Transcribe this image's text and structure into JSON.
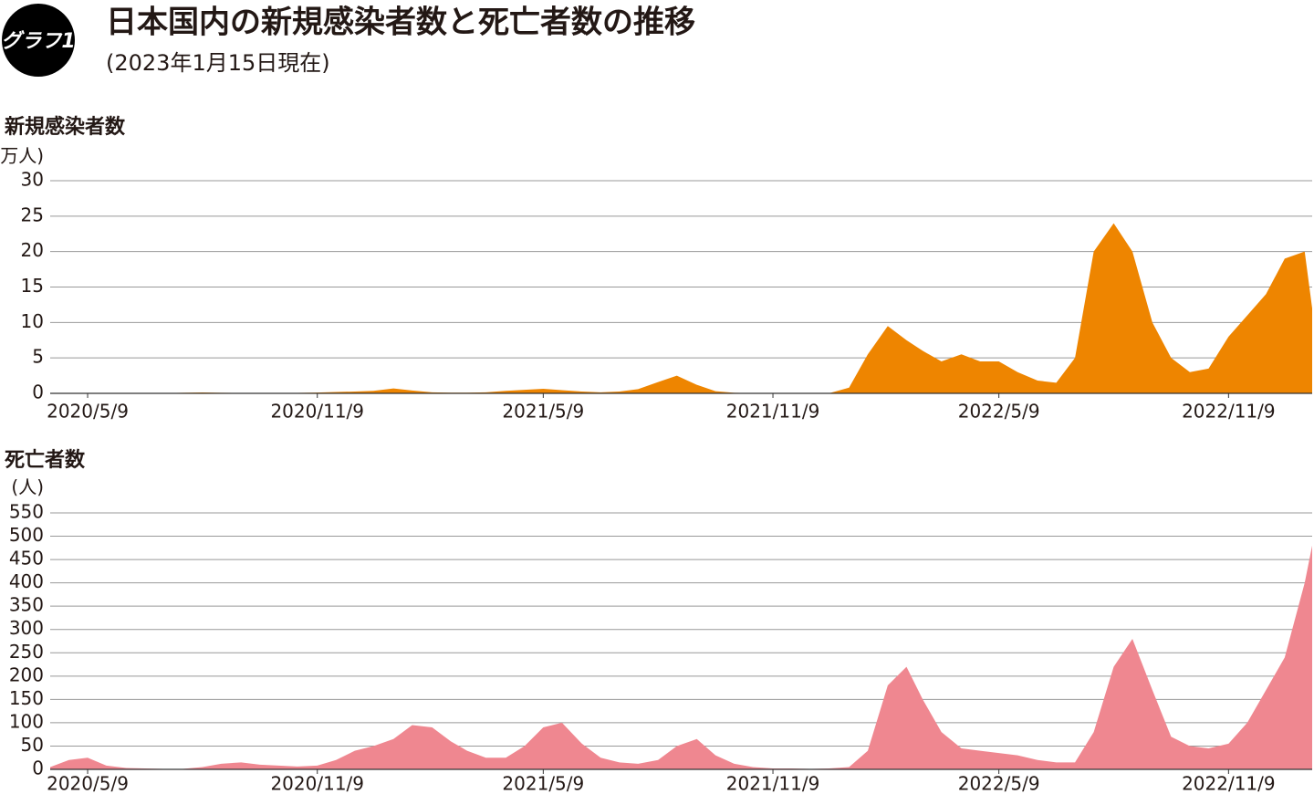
{
  "header": {
    "badge": "グラフ1",
    "title": "日本国内の新規感染者数と死亡者数の推移",
    "subtitle": "(2023年1月15日現在)"
  },
  "chart_data": [
    {
      "type": "area",
      "title": "新規感染者数",
      "unit_label": "(万人)",
      "color": "#ee8500",
      "grid": true,
      "x": [
        "2020/4/9",
        "2020/4/24",
        "2020/5/9",
        "2020/5/24",
        "2020/6/9",
        "2020/6/24",
        "2020/7/9",
        "2020/7/24",
        "2020/8/9",
        "2020/8/24",
        "2020/9/9",
        "2020/9/24",
        "2020/10/9",
        "2020/10/24",
        "2020/11/9",
        "2020/11/24",
        "2020/12/9",
        "2020/12/24",
        "2021/1/9",
        "2021/1/24",
        "2021/2/9",
        "2021/2/24",
        "2021/3/9",
        "2021/3/24",
        "2021/4/9",
        "2021/4/24",
        "2021/5/9",
        "2021/5/24",
        "2021/6/9",
        "2021/6/24",
        "2021/7/9",
        "2021/7/24",
        "2021/8/9",
        "2021/8/24",
        "2021/9/9",
        "2021/9/24",
        "2021/10/9",
        "2021/10/24",
        "2021/11/9",
        "2021/11/24",
        "2021/12/9",
        "2021/12/24",
        "2022/1/9",
        "2022/1/24",
        "2022/2/9",
        "2022/2/24",
        "2022/3/9",
        "2022/3/24",
        "2022/4/9",
        "2022/4/24",
        "2022/5/9",
        "2022/5/24",
        "2022/6/9",
        "2022/6/24",
        "2022/7/9",
        "2022/7/24",
        "2022/8/9",
        "2022/8/24",
        "2022/9/9",
        "2022/9/24",
        "2022/10/9",
        "2022/10/24",
        "2022/11/9",
        "2022/11/24",
        "2022/12/9",
        "2022/12/24",
        "2023/1/9",
        "2023/1/15"
      ],
      "values": [
        0.05,
        0.04,
        0.01,
        0,
        0.01,
        0.01,
        0.03,
        0.08,
        0.13,
        0.08,
        0.06,
        0.05,
        0.06,
        0.07,
        0.12,
        0.2,
        0.25,
        0.35,
        0.7,
        0.4,
        0.15,
        0.1,
        0.1,
        0.15,
        0.35,
        0.5,
        0.65,
        0.45,
        0.25,
        0.15,
        0.25,
        0.6,
        1.6,
        2.5,
        1.2,
        0.3,
        0.08,
        0.03,
        0.02,
        0.01,
        0.01,
        0.02,
        0.8,
        5.5,
        9.5,
        7.5,
        6,
        4.5,
        5.5,
        4.5,
        4.5,
        3,
        1.8,
        1.5,
        5,
        20,
        24,
        20,
        10,
        5,
        3,
        3.5,
        8,
        11,
        14,
        19,
        20,
        12
      ],
      "xlim": [
        "2020/4/9",
        "2023/1/15"
      ],
      "xticks": [
        "2020/5/9",
        "2020/11/9",
        "2021/5/9",
        "2021/11/9",
        "2022/5/9",
        "2022/11/9"
      ],
      "ylim": [
        0,
        30
      ],
      "yticks": [
        0,
        5,
        10,
        15,
        20,
        25,
        30
      ]
    },
    {
      "type": "area",
      "title": "死亡者数",
      "unit_label": "(人)",
      "color": "#ef8790",
      "grid": true,
      "x": [
        "2020/4/9",
        "2020/4/24",
        "2020/5/9",
        "2020/5/24",
        "2020/6/9",
        "2020/6/24",
        "2020/7/9",
        "2020/7/24",
        "2020/8/9",
        "2020/8/24",
        "2020/9/9",
        "2020/9/24",
        "2020/10/9",
        "2020/10/24",
        "2020/11/9",
        "2020/11/24",
        "2020/12/9",
        "2020/12/24",
        "2021/1/9",
        "2021/1/24",
        "2021/2/9",
        "2021/2/24",
        "2021/3/9",
        "2021/3/24",
        "2021/4/9",
        "2021/4/24",
        "2021/5/9",
        "2021/5/24",
        "2021/6/9",
        "2021/6/24",
        "2021/7/9",
        "2021/7/24",
        "2021/8/9",
        "2021/8/24",
        "2021/9/9",
        "2021/9/24",
        "2021/10/9",
        "2021/10/24",
        "2021/11/9",
        "2021/11/24",
        "2021/12/9",
        "2021/12/24",
        "2022/1/9",
        "2022/1/24",
        "2022/2/9",
        "2022/2/24",
        "2022/3/9",
        "2022/3/24",
        "2022/4/9",
        "2022/4/24",
        "2022/5/9",
        "2022/5/24",
        "2022/6/9",
        "2022/6/24",
        "2022/7/9",
        "2022/7/24",
        "2022/8/9",
        "2022/8/24",
        "2022/9/9",
        "2022/9/24",
        "2022/10/9",
        "2022/10/24",
        "2022/11/9",
        "2022/11/24",
        "2022/12/9",
        "2022/12/24",
        "2023/1/9",
        "2023/1/15"
      ],
      "values": [
        5,
        20,
        25,
        8,
        3,
        2,
        1,
        1,
        5,
        12,
        15,
        10,
        8,
        6,
        8,
        20,
        40,
        50,
        65,
        95,
        90,
        60,
        40,
        25,
        25,
        50,
        90,
        100,
        55,
        25,
        15,
        12,
        20,
        50,
        65,
        30,
        12,
        5,
        2,
        2,
        1,
        2,
        5,
        40,
        180,
        220,
        150,
        80,
        45,
        40,
        35,
        30,
        20,
        15,
        15,
        80,
        220,
        280,
        170,
        70,
        50,
        45,
        55,
        100,
        170,
        240,
        400,
        480
      ],
      "xlim": [
        "2020/4/9",
        "2023/1/15"
      ],
      "xticks": [
        "2020/5/9",
        "2020/11/9",
        "2021/5/9",
        "2021/11/9",
        "2022/5/9",
        "2022/11/9"
      ],
      "ylim": [
        0,
        550
      ],
      "yticks": [
        0,
        50,
        100,
        150,
        200,
        250,
        300,
        350,
        400,
        450,
        500,
        550
      ]
    }
  ]
}
